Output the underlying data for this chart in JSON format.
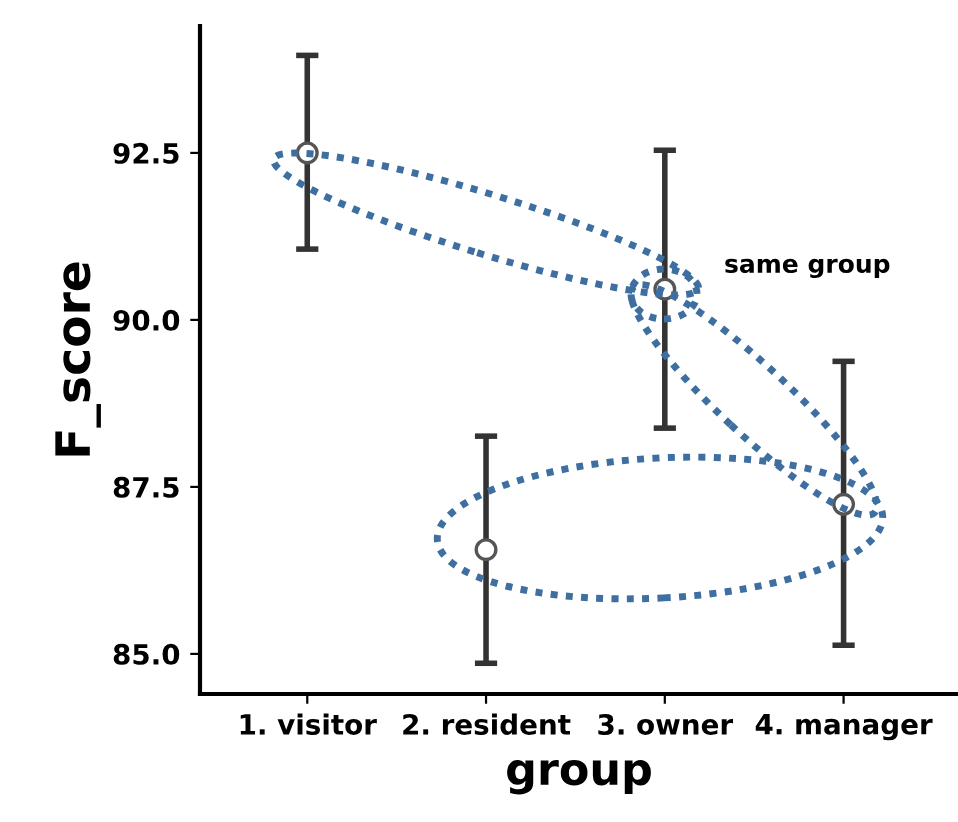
{
  "chart_data": {
    "type": "scatter",
    "xlabel": "group",
    "ylabel": "F_score",
    "categories": [
      "1. visitor",
      "2. resident",
      "3. owner",
      "4. manager"
    ],
    "series": [
      {
        "color": "#ffffff",
        "values": [
          92.5,
          86.56,
          90.46,
          87.24
        ],
        "errors": [
          [
            91.06,
            93.96
          ],
          [
            84.86,
            88.26
          ],
          [
            88.38,
            92.54
          ],
          [
            85.13,
            89.38
          ]
        ]
      }
    ],
    "ylim": [
      84.4,
      94.4
    ],
    "yticks": [
      {
        "value": 85,
        "label": "85.0"
      },
      {
        "value": 87.5,
        "label": "87.5"
      },
      {
        "value": 90,
        "label": "90.0"
      },
      {
        "value": 92.5,
        "label": "92.5"
      }
    ],
    "marker": "circle",
    "grid": false,
    "annotations": [
      "same group"
    ]
  }
}
